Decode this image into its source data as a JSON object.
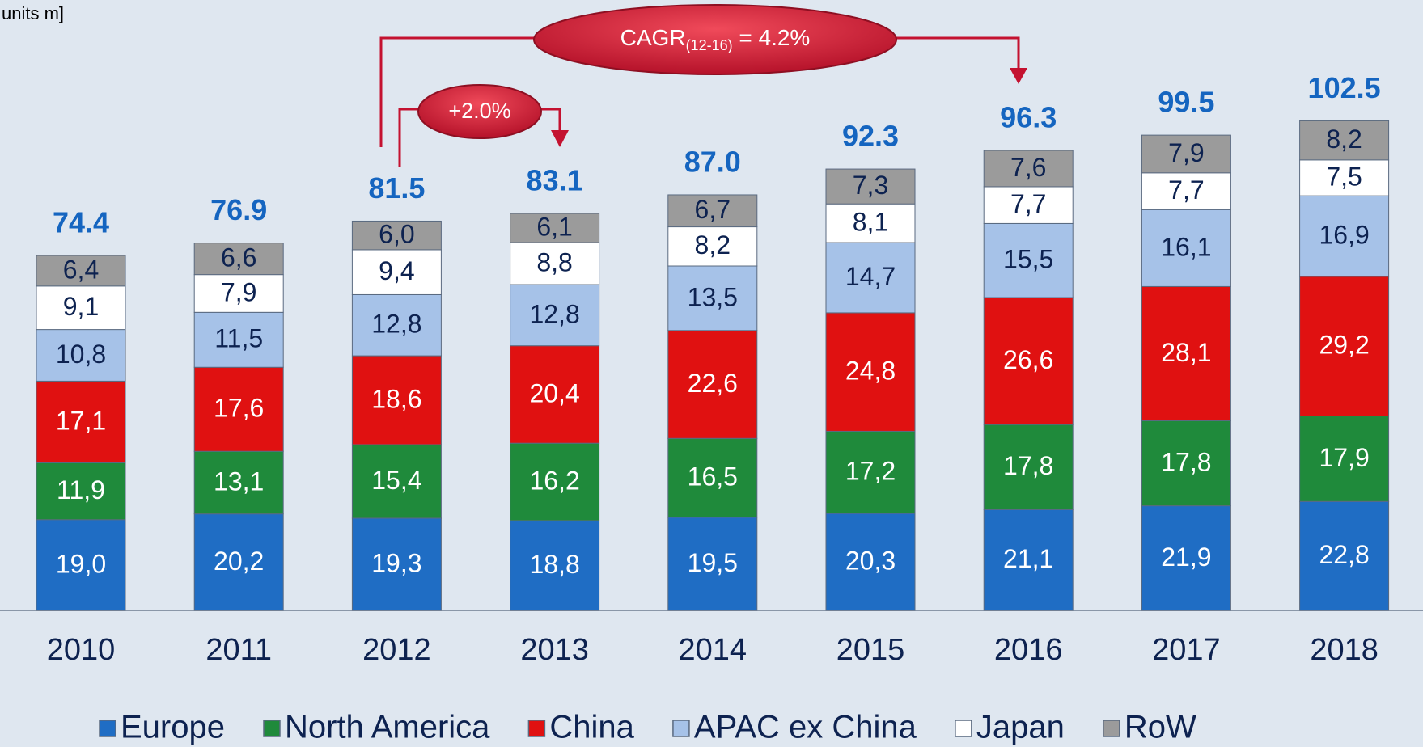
{
  "chart_data": {
    "type": "stacked_bar",
    "title": "units m]",
    "categories": [
      "2010",
      "2011",
      "2012",
      "2013",
      "2014",
      "2015",
      "2016",
      "2017",
      "2018"
    ],
    "series": [
      {
        "name": "Europe",
        "color": "#1f6dc4",
        "values": [
          19.0,
          20.2,
          19.3,
          18.8,
          19.5,
          20.3,
          21.1,
          21.9,
          22.8
        ],
        "value_labels": [
          "19,0",
          "20,2",
          "19,3",
          "18,8",
          "19,5",
          "20,3",
          "21,1",
          "21,9",
          "22,8"
        ]
      },
      {
        "name": "North America",
        "color": "#1f8a3b",
        "values": [
          11.9,
          13.1,
          15.4,
          16.2,
          16.5,
          17.2,
          17.8,
          17.8,
          17.9
        ],
        "value_labels": [
          "11,9",
          "13,1",
          "15,4",
          "16,2",
          "16,5",
          "17,2",
          "17,8",
          "17,8",
          "17,9"
        ]
      },
      {
        "name": "China",
        "color": "#e01111",
        "values": [
          17.1,
          17.6,
          18.6,
          20.4,
          22.6,
          24.8,
          26.6,
          28.1,
          29.2
        ],
        "value_labels": [
          "17,1",
          "17,6",
          "18,6",
          "20,4",
          "22,6",
          "24,8",
          "26,6",
          "28,1",
          "29,2"
        ]
      },
      {
        "name": "APAC ex China",
        "color": "#a6c2e8",
        "values": [
          10.8,
          11.5,
          12.8,
          12.8,
          13.5,
          14.7,
          15.5,
          16.1,
          16.9
        ],
        "value_labels": [
          "10,8",
          "11,5",
          "12,8",
          "12,8",
          "13,5",
          "14,7",
          "15,5",
          "16,1",
          "16,9"
        ]
      },
      {
        "name": "Japan",
        "color": "#ffffff",
        "values": [
          9.1,
          7.9,
          9.4,
          8.8,
          8.2,
          8.1,
          7.7,
          7.7,
          7.5
        ],
        "value_labels": [
          "9,1",
          "7,9",
          "9,4",
          "8,8",
          "8,2",
          "8,1",
          "7,7",
          "7,7",
          "7,5"
        ]
      },
      {
        "name": "RoW",
        "color": "#9b9b9b",
        "values": [
          6.4,
          6.6,
          6.0,
          6.1,
          6.7,
          7.3,
          7.6,
          7.9,
          8.2
        ],
        "value_labels": [
          "6,4",
          "6,6",
          "6,0",
          "6,1",
          "6,7",
          "7,3",
          "7,6",
          "7,9",
          "8,2"
        ]
      }
    ],
    "totals": [
      74.4,
      76.9,
      81.5,
      83.1,
      87.0,
      92.3,
      96.3,
      99.5,
      102.5
    ],
    "total_labels": [
      "74.4",
      "76.9",
      "81.5",
      "83.1",
      "87.0",
      "92.3",
      "96.3",
      "99.5",
      "102.5"
    ],
    "ylim": [
      0,
      120
    ],
    "annotations": {
      "cagr": {
        "text": "CAGR",
        "subscript": "(12-16)",
        "suffix": " = 4.2%"
      },
      "growth": "+2.0%"
    }
  }
}
